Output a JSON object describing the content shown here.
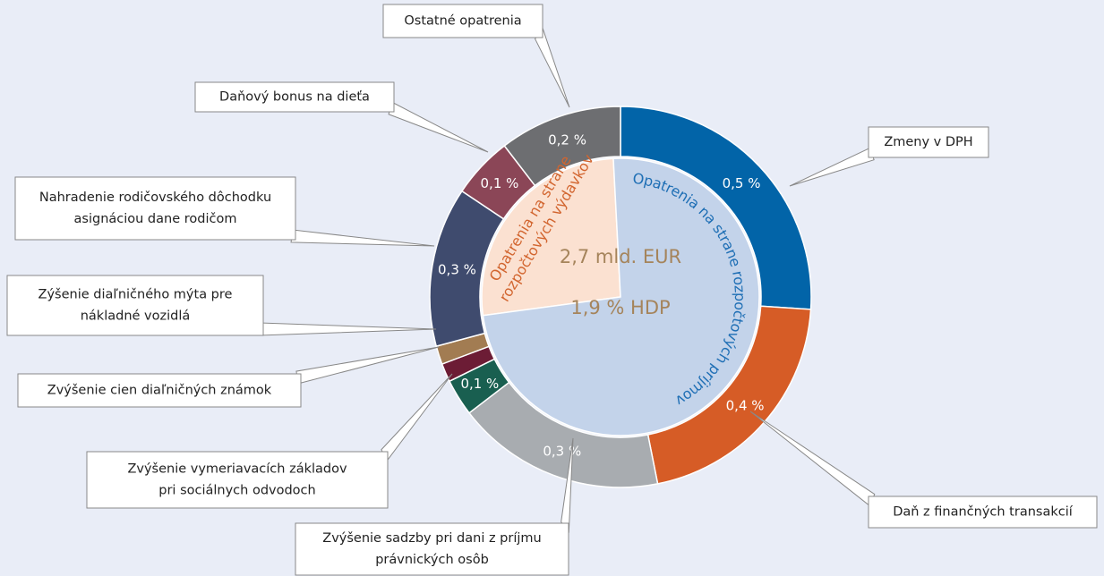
{
  "chart_data": {
    "type": "donut",
    "center_text": [
      "2,7 mld. EUR",
      "1,9 % HDP"
    ],
    "rings": [
      {
        "categories": [
          [
            "Opatrenia na strane",
            "rozpočtových výdavkov"
          ],
          [
            "Opatrenia na strane rozpočtových príjmov"
          ]
        ],
        "values": [
          0.5,
          1.4
        ],
        "colors": [
          "#fbe1d1",
          "#c3d3ea"
        ],
        "text_colors": [
          "#d2652f",
          "#1f6fb5"
        ]
      },
      {
        "categories": [
          [
            "Zmeny v DPH"
          ],
          [
            "Daň z finančných transakcií"
          ],
          [
            "Zvýšenie sadzby pri dani z príjmu",
            "právnických osôb"
          ],
          [
            "Zvýšenie vymeriavacích základov",
            "pri sociálnych odvodoch"
          ],
          [
            "Zvýšenie cien diaľničných známok"
          ],
          [
            "Zýšenie diaľničného mýta pre",
            "nákladné vozidlá"
          ],
          [
            "Nahradenie rodičovského dôchodku",
            "asignáciou dane rodičom"
          ],
          [
            "Daňový bonus na dieťa"
          ],
          [
            "Ostatné opatrenia"
          ]
        ],
        "values": [
          0.5,
          0.4,
          0.34,
          0.06,
          0.03,
          0.03,
          0.26,
          0.1,
          0.2
        ],
        "value_labels": [
          "0,5 %",
          "0,4 %",
          "0,3 %",
          "0,1 %",
          null,
          null,
          "0,3 %",
          "0,1 %",
          "0,2 %"
        ],
        "colors": [
          "#0264a8",
          "#d65c26",
          "#a8acb0",
          "#195f50",
          "#6c1c35",
          "#a27c52",
          "#3f4b6e",
          "#8b4657",
          "#6d6e71"
        ]
      }
    ]
  }
}
